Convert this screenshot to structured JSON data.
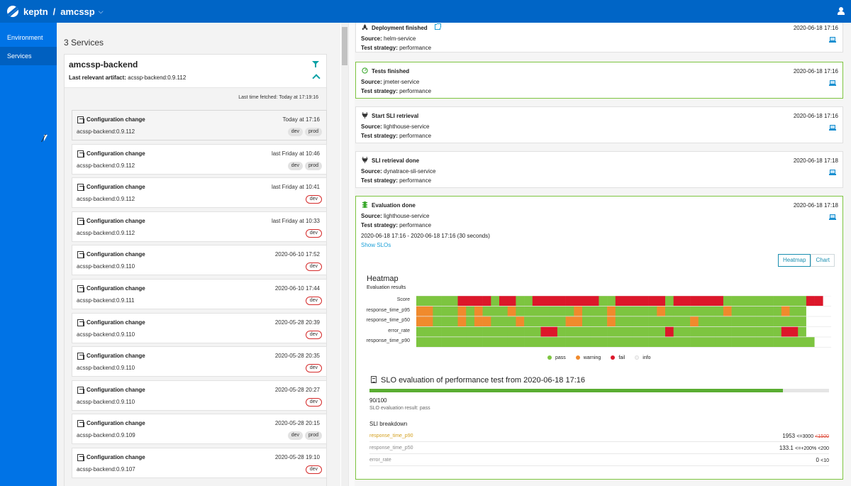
{
  "app": {
    "brand": "keptn",
    "separator": "/",
    "project": "amcssp"
  },
  "sidebar": {
    "items": [
      {
        "label": "Environment"
      },
      {
        "label": "Services"
      }
    ]
  },
  "services": {
    "count_label": "3 Services",
    "card": {
      "name": "amcssp-backend",
      "artifact_label": "Last relevant artifact:",
      "artifact_value": "acssp-backend:0.9.112",
      "fetched": "Last time fetched: Today at 17:19:16"
    },
    "events": [
      {
        "title": "Configuration change",
        "version": "acssp-backend:0.9.112",
        "time": "Today at 17:16",
        "tags": [
          "dev",
          "prod"
        ],
        "tag_style": "grey"
      },
      {
        "title": "Configuration change",
        "version": "acssp-backend:0.9.112",
        "time": "last Friday at 10:46",
        "tags": [
          "dev",
          "prod"
        ],
        "tag_style": "grey"
      },
      {
        "title": "Configuration change",
        "version": "acssp-backend:0.9.112",
        "time": "last Friday at 10:41",
        "tags": [
          "dev"
        ],
        "tag_style": "red"
      },
      {
        "title": "Configuration change",
        "version": "acssp-backend:0.9.112",
        "time": "last Friday at 10:33",
        "tags": [
          "dev"
        ],
        "tag_style": "red"
      },
      {
        "title": "Configuration change",
        "version": "acssp-backend:0.9.110",
        "time": "2020-06-10 17:52",
        "tags": [
          "dev"
        ],
        "tag_style": "red"
      },
      {
        "title": "Configuration change",
        "version": "acssp-backend:0.9.111",
        "time": "2020-06-10 17:44",
        "tags": [
          "dev"
        ],
        "tag_style": "red"
      },
      {
        "title": "Configuration change",
        "version": "acssp-backend:0.9.110",
        "time": "2020-05-28 20:39",
        "tags": [
          "dev"
        ],
        "tag_style": "red"
      },
      {
        "title": "Configuration change",
        "version": "acssp-backend:0.9.110",
        "time": "2020-05-28 20:35",
        "tags": [
          "dev"
        ],
        "tag_style": "red"
      },
      {
        "title": "Configuration change",
        "version": "acssp-backend:0.9.110",
        "time": "2020-05-28 20:27",
        "tags": [
          "dev"
        ],
        "tag_style": "red"
      },
      {
        "title": "Configuration change",
        "version": "acssp-backend:0.9.109",
        "time": "2020-05-28 20:15",
        "tags": [
          "dev",
          "prod"
        ],
        "tag_style": "grey"
      },
      {
        "title": "Configuration change",
        "version": "acssp-backend:0.9.107",
        "time": "2020-05-28 19:10",
        "tags": [
          "dev"
        ],
        "tag_style": "red"
      }
    ]
  },
  "details": {
    "labels": {
      "source": "Source:",
      "strategy": "Test strategy:"
    },
    "cards": [
      {
        "title": "Deployment finished",
        "date": "2020-06-18 17:16",
        "source": "helm-service",
        "strategy": "performance"
      },
      {
        "title": "Tests finished",
        "date": "2020-06-18 17:16",
        "source": "jmeter-service",
        "strategy": "performance"
      },
      {
        "title": "Start SLI retrieval",
        "date": "2020-06-18 17:16",
        "source": "lighthouse-service",
        "strategy": "performance"
      },
      {
        "title": "SLI retrieval done",
        "date": "2020-06-18 17:18",
        "source": "dynatrace-sli-service",
        "strategy": "performance"
      },
      {
        "title": "Evaluation done",
        "date": "2020-06-18 17:18",
        "source": "lighthouse-service",
        "strategy": "performance"
      }
    ],
    "evaluation": {
      "range": "2020-06-18 17:16 - 2020-06-18 17:16 (30 seconds)",
      "show_slos": "Show SLOs",
      "toggle": [
        "Heatmap",
        "Chart"
      ],
      "heatmap_title": "Heatmap",
      "heatmap_subtitle": "Evaluation results",
      "slo_title": "SLO evaluation of performance test from 2020-06-18 17:16",
      "score_text": "90/100",
      "score": 90,
      "result_text": "SLO evaluation result: pass",
      "breakdown_title": "SLI breakdown",
      "sli": [
        {
          "name": "response_time_p90",
          "value": "1953",
          "criteria": "<=3000",
          "failed": "<1500",
          "warn": true
        },
        {
          "name": "response_time_p50",
          "value": "133.1",
          "criteria": "<=+200% <200",
          "failed": "",
          "warn": false
        },
        {
          "name": "error_rate",
          "value": "0",
          "criteria": "<10",
          "failed": "",
          "warn": false
        }
      ]
    }
  },
  "chart_data": {
    "type": "heatmap",
    "title": "Heatmap",
    "subtitle": "Evaluation results",
    "rows": [
      "Score",
      "response_time_p95",
      "response_time_p50",
      "error_rate",
      "response_time_p90"
    ],
    "legend": [
      "pass",
      "warning",
      "fail",
      "info"
    ],
    "colors": {
      "pass": "#7dc540",
      "warning": "#f08a2d",
      "fail": "#dc172a",
      "info": "#ffffff"
    },
    "columns": 50,
    "cells": [
      "ppppprrrrprrpprrrrrrrrpprrrrrrprrrrrrpppppppppprr",
      "wwpppwpwpppwpppppppwpppwpppppwpppppppwppppppwppii",
      "wwpppwpwwpppwpppppwwpppwpppppppppwpppppppppppppii",
      "ppppppppppppppprrppppppppppppprppppppppppppprrpii",
      "ppppppppppppppppppppppppppppppppppppppppppppppppii"
    ]
  }
}
